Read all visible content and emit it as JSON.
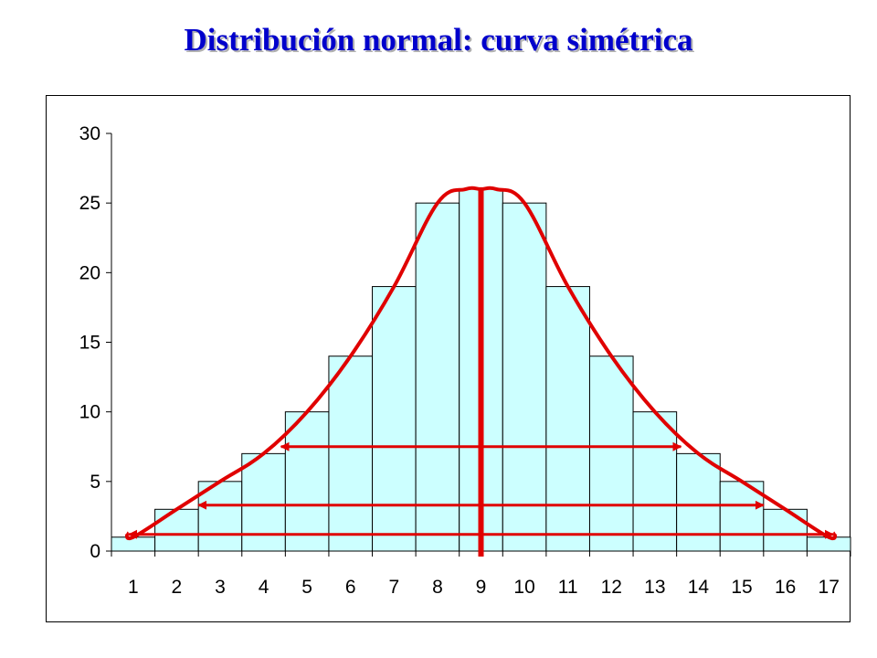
{
  "colors": {
    "title": "#0000cc",
    "bar_fill": "#ccffff",
    "bar_stroke": "#000000",
    "annotation": "#e00000"
  },
  "chart_data": {
    "type": "bar",
    "title": "Distribución normal: curva simétrica",
    "xlabel": "",
    "ylabel": "",
    "categories": [
      "1",
      "2",
      "3",
      "4",
      "5",
      "6",
      "7",
      "8",
      "9",
      "10",
      "11",
      "12",
      "13",
      "14",
      "15",
      "16",
      "17"
    ],
    "values": [
      1,
      3,
      5,
      7,
      10,
      14,
      19,
      25,
      26,
      25,
      19,
      14,
      10,
      7,
      5,
      3,
      1
    ],
    "ylim": [
      0,
      30
    ],
    "yticks": [
      "0",
      "5",
      "10",
      "15",
      "20",
      "25",
      "30"
    ],
    "grid": false,
    "legend": "none",
    "annotations": {
      "curve": "symmetric smooth curve over bar tops",
      "axis_of_symmetry_at": 9,
      "symmetry_arrows": [
        {
          "y": 7.5,
          "from": 4.4,
          "to": 13.6
        },
        {
          "y": 3.3,
          "from": 2.5,
          "to": 15.5
        },
        {
          "y": 1.2,
          "from": 0.9,
          "to": 17.1
        }
      ]
    }
  }
}
